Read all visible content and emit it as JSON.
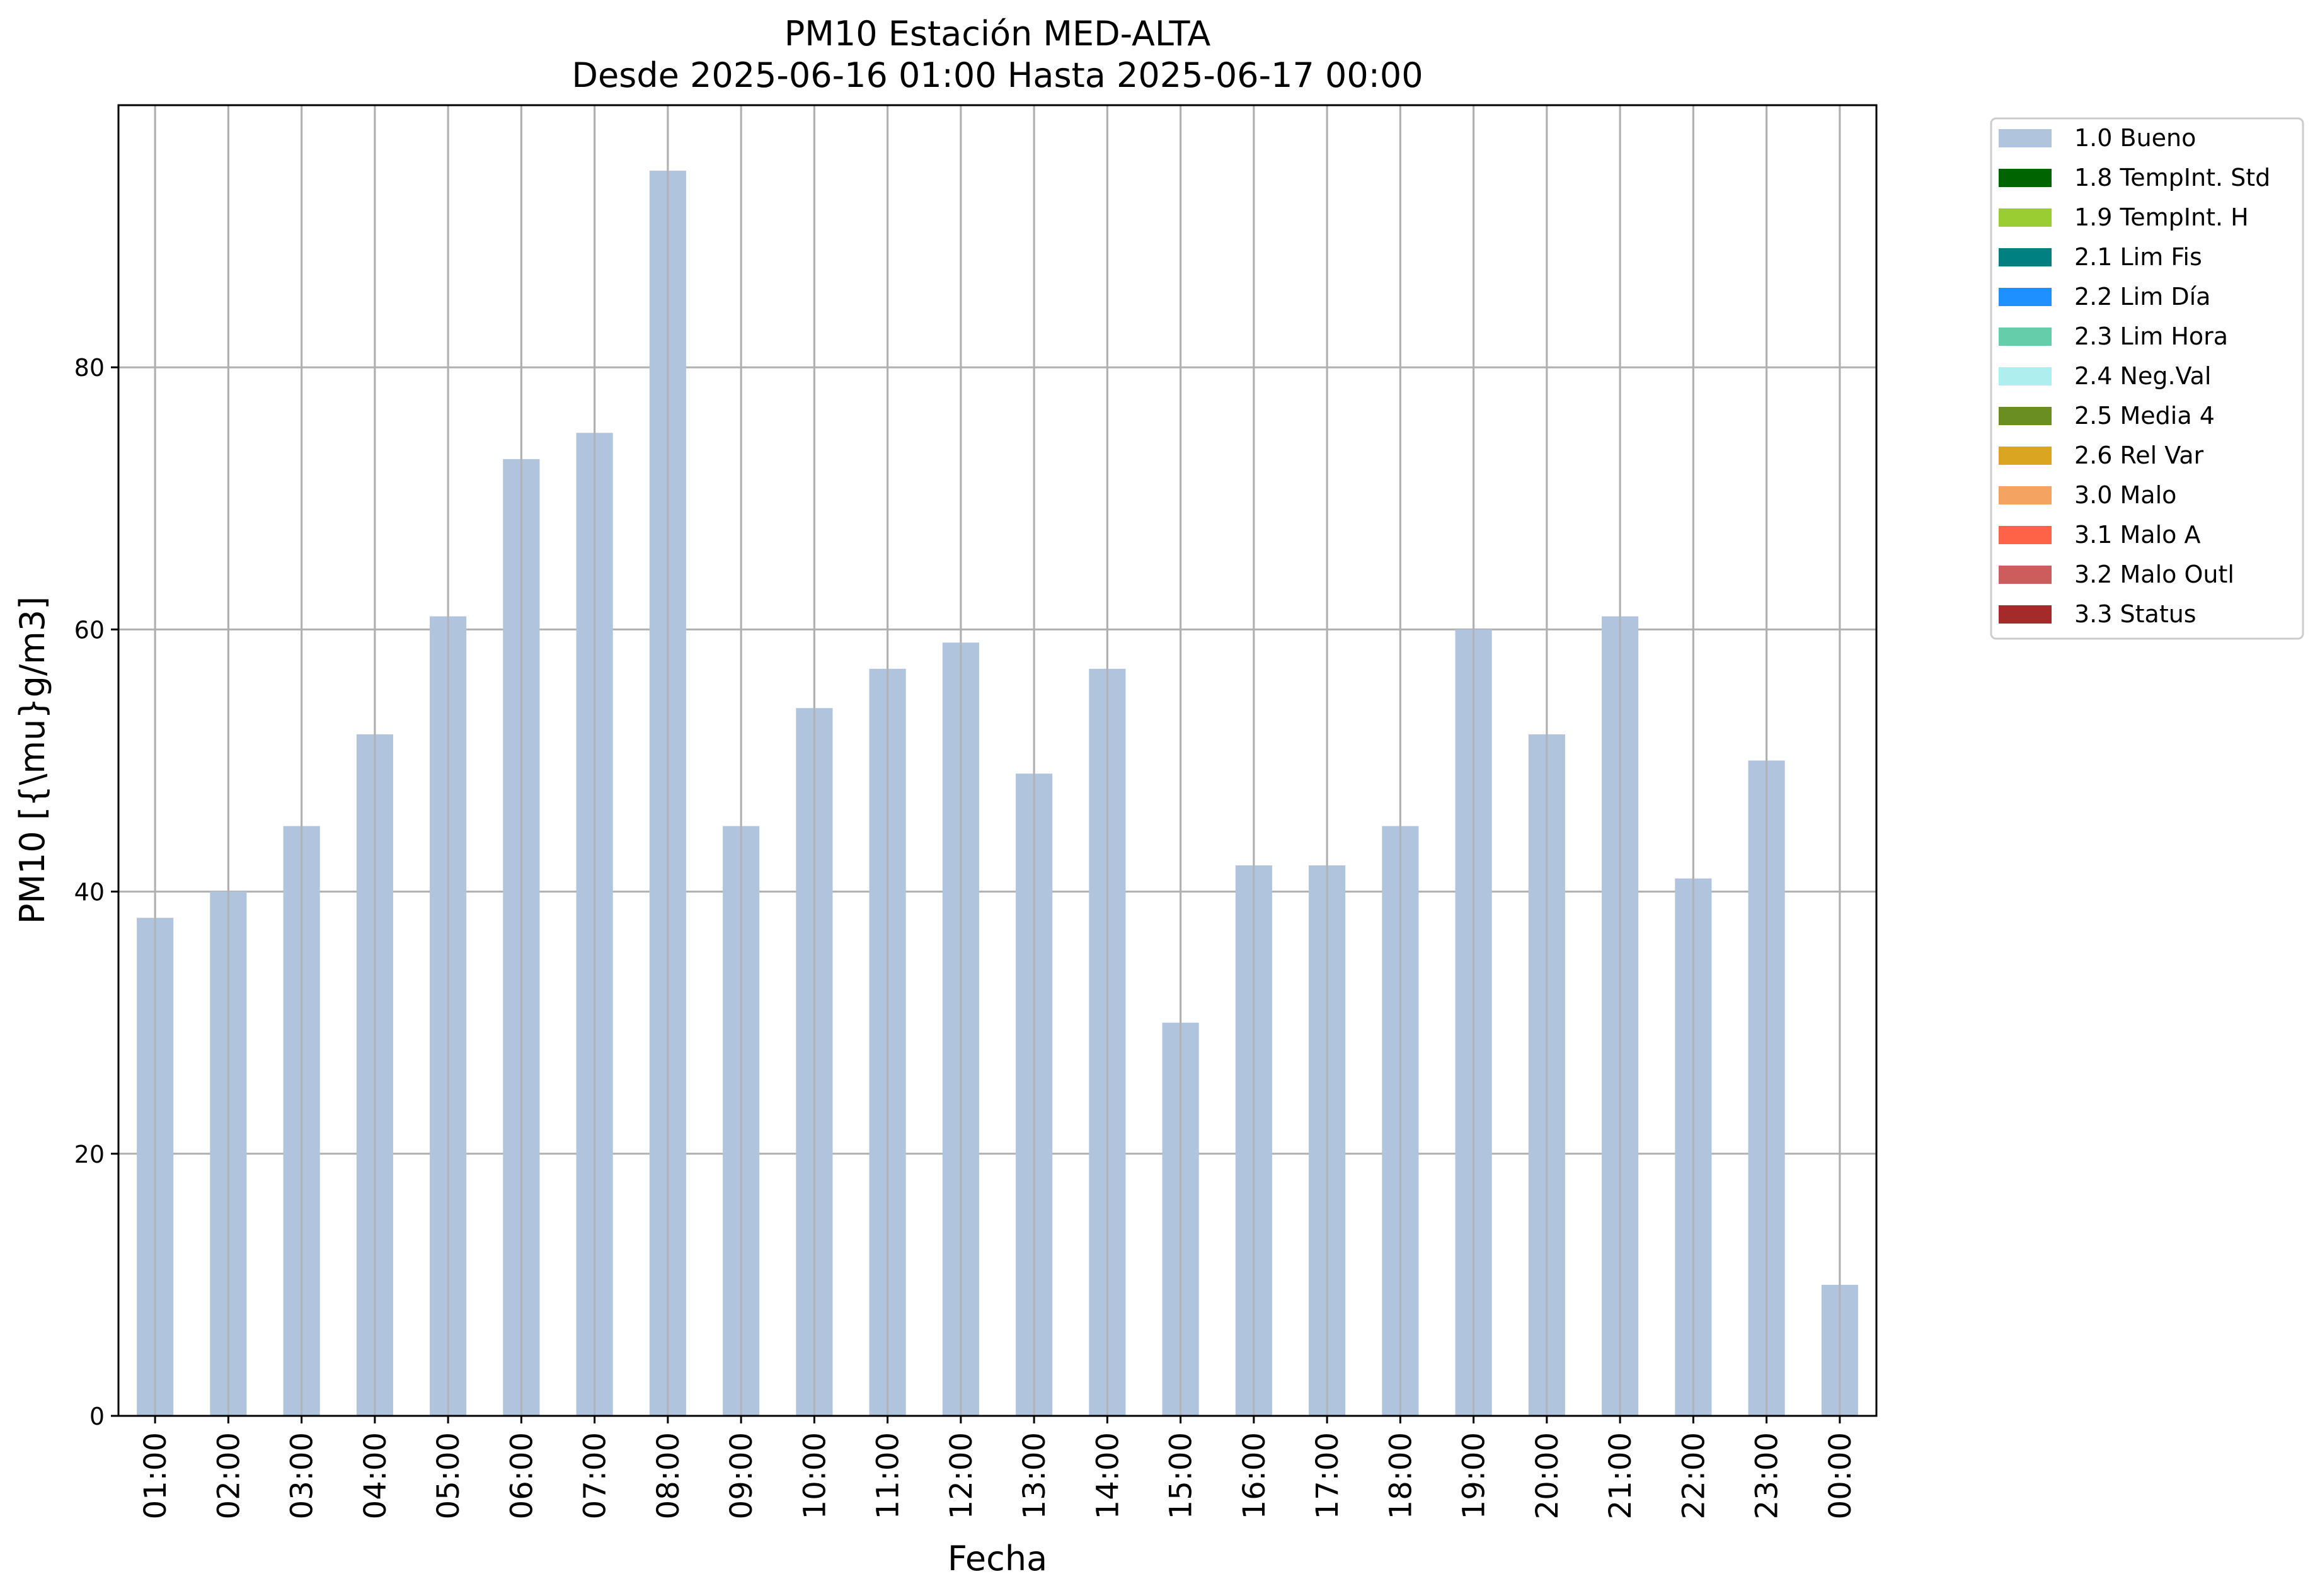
{
  "chart_data": {
    "type": "bar",
    "title": "PM10 Estación MED-ALTA",
    "subtitle": "Desde 2025-06-16 01:00 Hasta 2025-06-17 00:00",
    "xlabel": "Fecha",
    "ylabel": "PM10 [{\\mu}g/m3]",
    "ylim": [
      0,
      100
    ],
    "yticks": [
      0,
      20,
      40,
      60,
      80
    ],
    "grid": true,
    "legend_position": "outside top-right",
    "categories": [
      "01:00",
      "02:00",
      "03:00",
      "04:00",
      "05:00",
      "06:00",
      "07:00",
      "08:00",
      "09:00",
      "10:00",
      "11:00",
      "12:00",
      "13:00",
      "14:00",
      "15:00",
      "16:00",
      "17:00",
      "18:00",
      "19:00",
      "20:00",
      "21:00",
      "22:00",
      "23:00",
      "00:00"
    ],
    "series": [
      {
        "name": "1.0 Bueno",
        "color": "#b0c4de",
        "values": [
          38,
          40,
          45,
          52,
          61,
          73,
          75,
          95,
          45,
          54,
          57,
          59,
          49,
          57,
          30,
          42,
          42,
          45,
          60,
          52,
          61,
          41,
          50,
          10
        ]
      }
    ],
    "legend": [
      {
        "label": "1.0 Bueno",
        "color": "#b0c4de"
      },
      {
        "label": "1.8 TempInt. Std",
        "color": "#006400"
      },
      {
        "label": "1.9 TempInt. H",
        "color": "#9acd32"
      },
      {
        "label": "2.1 Lim Fis",
        "color": "#008080"
      },
      {
        "label": "2.2 Lim Día",
        "color": "#1e90ff"
      },
      {
        "label": "2.3 Lim Hora",
        "color": "#66cdaa"
      },
      {
        "label": "2.4 Neg.Val",
        "color": "#afeeee"
      },
      {
        "label": "2.5 Media 4",
        "color": "#6b8e23"
      },
      {
        "label": "2.6 Rel Var",
        "color": "#daa520"
      },
      {
        "label": "3.0 Malo",
        "color": "#f4a460"
      },
      {
        "label": "3.1 Malo A",
        "color": "#ff6347"
      },
      {
        "label": "3.2 Malo Outl",
        "color": "#cd5c5c"
      },
      {
        "label": "3.3 Status",
        "color": "#a52a2a"
      }
    ],
    "grid_color": "#b0b0b0"
  }
}
